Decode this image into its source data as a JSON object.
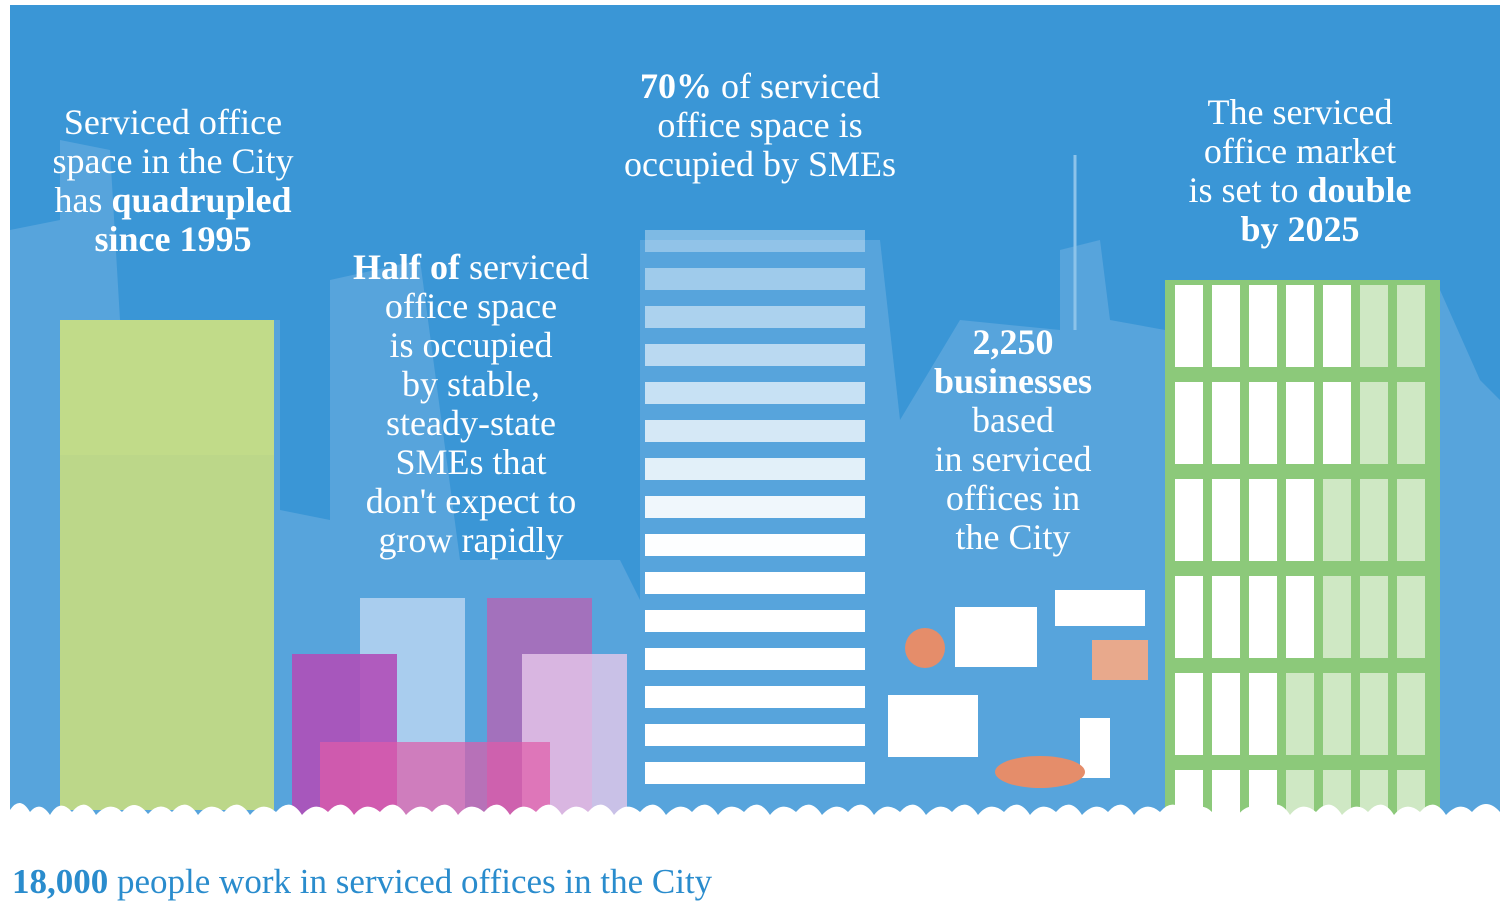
{
  "panels": [
    {
      "lines": [
        [
          {
            "t": "Serviced office",
            "b": false
          }
        ],
        [
          {
            "t": "space in the City",
            "b": false
          }
        ],
        [
          {
            "t": "has ",
            "b": false
          },
          {
            "t": "quadrupled",
            "b": true
          }
        ],
        [
          {
            "t": "since 1995",
            "b": true
          }
        ]
      ]
    },
    {
      "lines": [
        [
          {
            "t": "Half of",
            "b": true
          },
          {
            "t": " serviced",
            "b": false
          }
        ],
        [
          {
            "t": "office space",
            "b": false
          }
        ],
        [
          {
            "t": "is occupied",
            "b": false
          }
        ],
        [
          {
            "t": "by stable,",
            "b": false
          }
        ],
        [
          {
            "t": "steady-state",
            "b": false
          }
        ],
        [
          {
            "t": "SMEs that",
            "b": false
          }
        ],
        [
          {
            "t": "don't expect to",
            "b": false
          }
        ],
        [
          {
            "t": "grow rapidly",
            "b": false
          }
        ]
      ]
    },
    {
      "lines": [
        [
          {
            "t": "70%",
            "b": true
          },
          {
            "t": " of serviced",
            "b": false
          }
        ],
        [
          {
            "t": "office space is",
            "b": false
          }
        ],
        [
          {
            "t": "occupied by SMEs",
            "b": false
          }
        ]
      ]
    },
    {
      "lines": [
        [
          {
            "t": "2,250",
            "b": true
          }
        ],
        [
          {
            "t": "businesses",
            "b": true
          }
        ],
        [
          {
            "t": "based",
            "b": false
          }
        ],
        [
          {
            "t": "in serviced",
            "b": false
          }
        ],
        [
          {
            "t": "offices in",
            "b": false
          }
        ],
        [
          {
            "t": "the City",
            "b": false
          }
        ]
      ]
    },
    {
      "lines": [
        [
          {
            "t": "The serviced",
            "b": false
          }
        ],
        [
          {
            "t": "office market",
            "b": false
          }
        ],
        [
          {
            "t": "is set to ",
            "b": false
          },
          {
            "t": "double",
            "b": true
          }
        ],
        [
          {
            "t": "by 2025",
            "b": true
          }
        ]
      ]
    }
  ],
  "footer": {
    "lines": [
      [
        {
          "t": "18,000",
          "b": true
        },
        {
          "t": " people work in serviced offices in the City",
          "b": false
        }
      ]
    ]
  }
}
